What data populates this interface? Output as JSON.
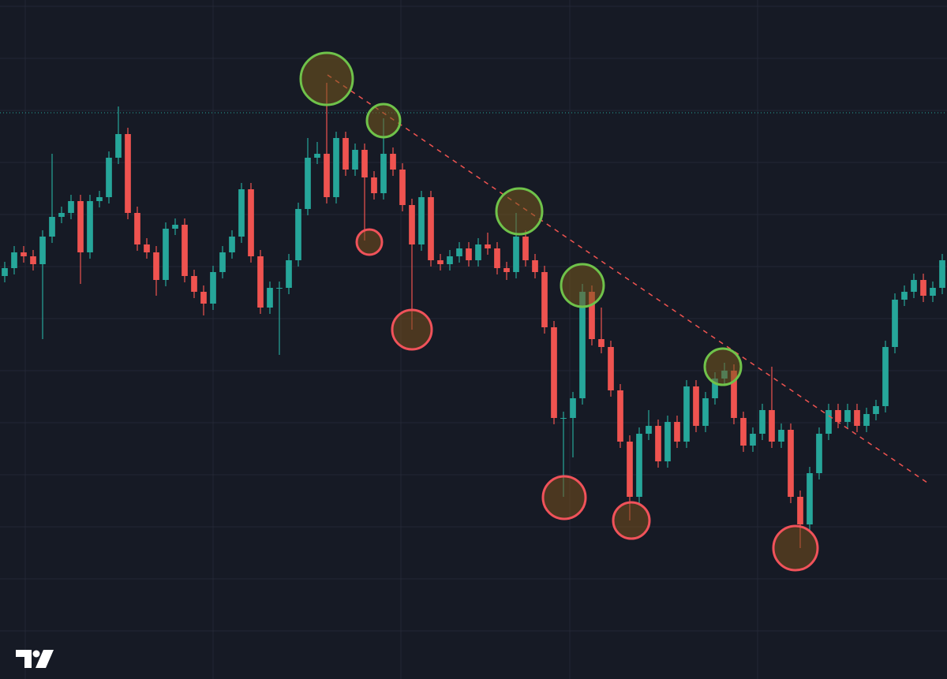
{
  "chart_data": {
    "type": "candlestick",
    "ylim": [
      0,
      861
    ],
    "up_color": "#26a69a",
    "down_color": "#ef5350",
    "open": [
      511,
      521,
      541,
      536,
      526,
      561,
      586,
      591,
      606,
      541,
      606,
      611,
      661,
      691,
      591,
      551,
      541,
      506,
      571,
      576,
      511,
      491,
      476,
      516,
      541,
      561,
      621,
      536,
      471,
      496,
      496,
      531,
      596,
      661,
      666,
      611,
      686,
      646,
      671,
      636,
      616,
      666,
      646,
      601,
      551,
      611,
      531,
      526,
      536,
      546,
      531,
      551,
      546,
      521,
      516,
      561,
      531,
      516,
      446,
      331,
      331,
      356,
      491,
      431,
      421,
      366,
      301,
      231,
      311,
      321,
      276,
      326,
      301,
      371,
      321,
      356,
      381,
      391,
      331,
      296,
      311,
      341,
      301,
      316,
      231,
      196,
      261,
      311,
      341,
      326,
      341,
      321,
      336,
      346,
      421,
      481,
      491,
      506,
      486,
      496
    ],
    "high": [
      529,
      549,
      549,
      544,
      569,
      666,
      599,
      614,
      614,
      614,
      619,
      669,
      726,
      699,
      599,
      559,
      549,
      579,
      584,
      584,
      519,
      499,
      524,
      549,
      569,
      629,
      629,
      544,
      504,
      504,
      539,
      604,
      686,
      681,
      756,
      694,
      694,
      679,
      679,
      644,
      711,
      674,
      654,
      609,
      619,
      619,
      539,
      544,
      554,
      554,
      559,
      566,
      554,
      529,
      591,
      569,
      539,
      524,
      454,
      339,
      364,
      501,
      499,
      471,
      429,
      374,
      309,
      319,
      341,
      329,
      334,
      334,
      379,
      379,
      364,
      389,
      401,
      399,
      339,
      319,
      349,
      396,
      324,
      324,
      239,
      269,
      319,
      349,
      349,
      349,
      349,
      344,
      354,
      429,
      489,
      499,
      514,
      514,
      504,
      539
    ],
    "low": [
      503,
      513,
      528,
      518,
      431,
      553,
      578,
      583,
      501,
      533,
      598,
      603,
      653,
      583,
      543,
      533,
      486,
      498,
      563,
      503,
      483,
      461,
      468,
      508,
      533,
      553,
      528,
      463,
      463,
      411,
      488,
      523,
      588,
      653,
      603,
      603,
      638,
      638,
      556,
      608,
      608,
      638,
      593,
      443,
      543,
      523,
      518,
      518,
      528,
      523,
      523,
      538,
      513,
      506,
      508,
      523,
      508,
      438,
      323,
      231,
      281,
      348,
      423,
      413,
      358,
      293,
      201,
      223,
      303,
      268,
      268,
      293,
      293,
      313,
      313,
      348,
      373,
      323,
      288,
      288,
      303,
      293,
      293,
      223,
      166,
      188,
      253,
      303,
      318,
      318,
      313,
      313,
      328,
      338,
      413,
      473,
      483,
      478,
      478,
      488
    ],
    "close": [
      521,
      541,
      536,
      526,
      561,
      586,
      591,
      606,
      541,
      606,
      611,
      661,
      691,
      591,
      551,
      541,
      506,
      571,
      576,
      511,
      491,
      476,
      516,
      541,
      561,
      621,
      536,
      471,
      496,
      496,
      531,
      596,
      661,
      666,
      611,
      686,
      646,
      671,
      636,
      616,
      666,
      646,
      601,
      551,
      611,
      531,
      526,
      536,
      546,
      531,
      551,
      546,
      521,
      516,
      561,
      531,
      516,
      446,
      331,
      331,
      356,
      491,
      431,
      421,
      366,
      301,
      231,
      311,
      321,
      276,
      326,
      301,
      371,
      321,
      356,
      381,
      391,
      331,
      296,
      311,
      341,
      301,
      316,
      231,
      196,
      261,
      311,
      341,
      326,
      341,
      321,
      336,
      346,
      421,
      481,
      491,
      506,
      486,
      496,
      531
    ]
  }
}
